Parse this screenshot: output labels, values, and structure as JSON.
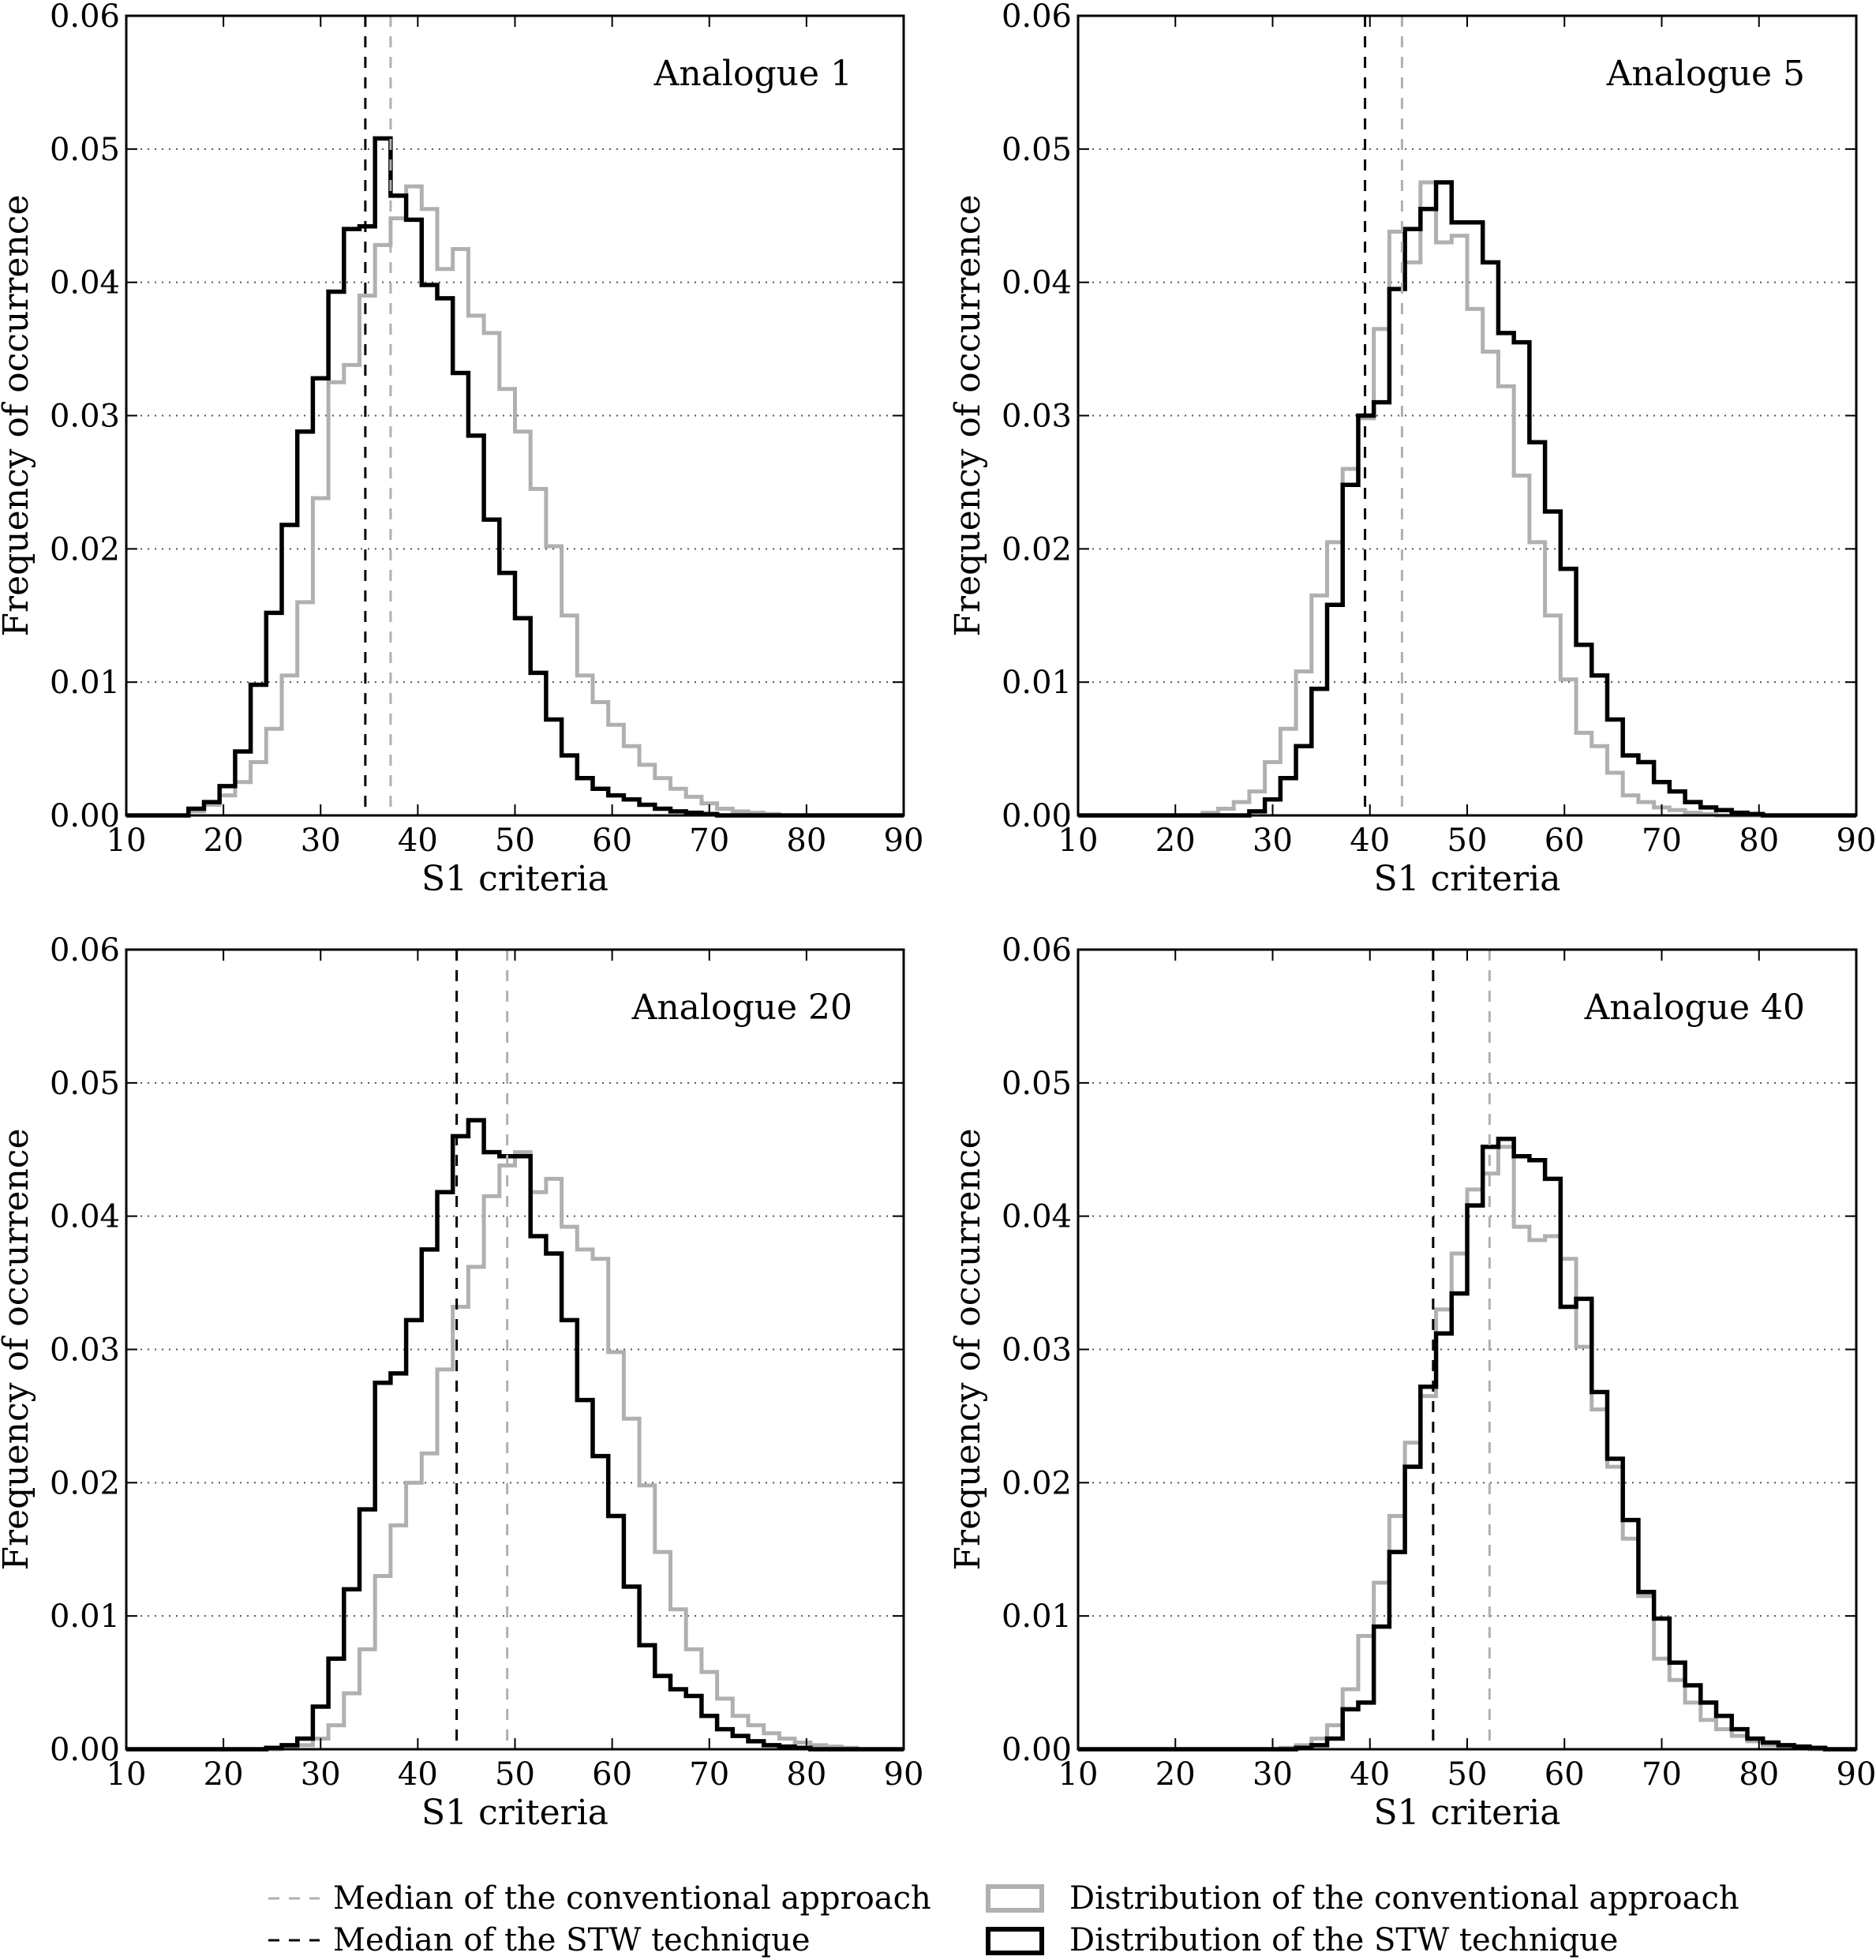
{
  "chart_data": [
    {
      "type": "histogram",
      "title": "Analogue 1",
      "xlabel": "S1 criteria",
      "ylabel": "Frequency of occurrence",
      "xlim": [
        10,
        90
      ],
      "ylim": [
        0,
        0.06
      ],
      "xticks": [
        "10",
        "20",
        "30",
        "40",
        "50",
        "60",
        "70",
        "80",
        "90"
      ],
      "yticks": [
        "0.00",
        "0.01",
        "0.02",
        "0.03",
        "0.04",
        "0.05",
        "0.06"
      ],
      "grid": "horizontal dotted",
      "bin_edges_start": 10,
      "bin_width": 1.6,
      "series": [
        {
          "name": "Distribution of the conventional approach",
          "color": "#b0b0b0",
          "values": [
            0,
            0,
            0,
            0,
            0.0003,
            0.0008,
            0.0015,
            0.0025,
            0.004,
            0.0065,
            0.0105,
            0.016,
            0.0238,
            0.0325,
            0.0338,
            0.039,
            0.0428,
            0.0448,
            0.0472,
            0.0455,
            0.041,
            0.0425,
            0.0375,
            0.0362,
            0.032,
            0.0288,
            0.0245,
            0.0202,
            0.015,
            0.0105,
            0.0085,
            0.0068,
            0.0052,
            0.0038,
            0.0028,
            0.002,
            0.0014,
            0.0009,
            0.0005,
            0.0003,
            0.0002,
            0.0001,
            0,
            0,
            0,
            0,
            0,
            0,
            0,
            0
          ]
        },
        {
          "name": "Distribution of the STW technique",
          "color": "#000000",
          "values": [
            0,
            0,
            0,
            0,
            0.0005,
            0.001,
            0.0022,
            0.0048,
            0.0098,
            0.0152,
            0.0218,
            0.0288,
            0.0328,
            0.0393,
            0.044,
            0.0442,
            0.0508,
            0.0465,
            0.0447,
            0.0398,
            0.0388,
            0.0332,
            0.0285,
            0.0222,
            0.0182,
            0.0148,
            0.0107,
            0.0072,
            0.0045,
            0.0028,
            0.002,
            0.0015,
            0.0012,
            0.0008,
            0.0005,
            0.0003,
            0.0002,
            0.0001,
            0,
            0,
            0,
            0,
            0,
            0,
            0,
            0,
            0,
            0,
            0,
            0
          ]
        }
      ],
      "medians": {
        "conventional": 37.2,
        "stw": 34.6
      }
    },
    {
      "type": "histogram",
      "title": "Analogue 5",
      "xlabel": "S1 criteria",
      "ylabel": "Frequency of occurrence",
      "xlim": [
        10,
        90
      ],
      "ylim": [
        0,
        0.06
      ],
      "xticks": [
        "10",
        "20",
        "30",
        "40",
        "50",
        "60",
        "70",
        "80",
        "90"
      ],
      "yticks": [
        "0.00",
        "0.01",
        "0.02",
        "0.03",
        "0.04",
        "0.05",
        "0.06"
      ],
      "grid": "horizontal dotted",
      "bin_edges_start": 10,
      "bin_width": 1.6,
      "series": [
        {
          "name": "Distribution of the conventional approach",
          "color": "#b0b0b0",
          "values": [
            0,
            0,
            0,
            0,
            0,
            0,
            0,
            0,
            0.0002,
            0.0005,
            0.001,
            0.0018,
            0.004,
            0.0065,
            0.0108,
            0.0165,
            0.0205,
            0.026,
            0.0298,
            0.0365,
            0.0438,
            0.0415,
            0.0475,
            0.043,
            0.0435,
            0.038,
            0.0348,
            0.0322,
            0.0255,
            0.0205,
            0.015,
            0.0102,
            0.0062,
            0.0052,
            0.0032,
            0.0015,
            0.001,
            0.0006,
            0.0004,
            0.0002,
            0.0001,
            0,
            0,
            0,
            0,
            0,
            0,
            0,
            0,
            0
          ]
        },
        {
          "name": "Distribution of the STW technique",
          "color": "#000000",
          "values": [
            0,
            0,
            0,
            0,
            0,
            0,
            0,
            0,
            0,
            0,
            0,
            0.0003,
            0.0012,
            0.0028,
            0.0052,
            0.0095,
            0.0158,
            0.0248,
            0.03,
            0.031,
            0.0395,
            0.044,
            0.0455,
            0.0475,
            0.0445,
            0.0445,
            0.0415,
            0.0362,
            0.0355,
            0.028,
            0.0228,
            0.0185,
            0.0128,
            0.0105,
            0.0072,
            0.0045,
            0.004,
            0.0025,
            0.0018,
            0.001,
            0.0006,
            0.0004,
            0.0002,
            0.0001,
            0,
            0,
            0,
            0,
            0,
            0
          ]
        }
      ],
      "medians": {
        "conventional": 43.3,
        "stw": 39.5
      }
    },
    {
      "type": "histogram",
      "title": "Analogue 20",
      "xlabel": "S1 criteria",
      "ylabel": "Frequency of occurrence",
      "xlim": [
        10,
        90
      ],
      "ylim": [
        0,
        0.06
      ],
      "xticks": [
        "10",
        "20",
        "30",
        "40",
        "50",
        "60",
        "70",
        "80",
        "90"
      ],
      "yticks": [
        "0.00",
        "0.01",
        "0.02",
        "0.03",
        "0.04",
        "0.05",
        "0.06"
      ],
      "grid": "horizontal dotted",
      "bin_edges_start": 10,
      "bin_width": 1.6,
      "series": [
        {
          "name": "Distribution of the conventional approach",
          "color": "#b0b0b0",
          "values": [
            0,
            0,
            0,
            0,
            0,
            0,
            0,
            0,
            0,
            0,
            0.0001,
            0.0003,
            0.0008,
            0.0018,
            0.0042,
            0.0075,
            0.013,
            0.0168,
            0.02,
            0.0222,
            0.0285,
            0.0332,
            0.0362,
            0.0415,
            0.0438,
            0.0448,
            0.0418,
            0.0428,
            0.0392,
            0.0375,
            0.0368,
            0.0298,
            0.0248,
            0.0198,
            0.0148,
            0.0105,
            0.0075,
            0.0058,
            0.0038,
            0.0025,
            0.0018,
            0.0012,
            0.0008,
            0.0005,
            0.0003,
            0.0002,
            0.0001,
            0,
            0,
            0
          ]
        },
        {
          "name": "Distribution of the STW technique",
          "color": "#000000",
          "values": [
            0,
            0,
            0,
            0,
            0,
            0,
            0,
            0,
            0,
            0.0001,
            0.0003,
            0.0008,
            0.0032,
            0.0068,
            0.012,
            0.018,
            0.0275,
            0.0282,
            0.0322,
            0.0375,
            0.0418,
            0.046,
            0.0472,
            0.0448,
            0.0445,
            0.0445,
            0.0385,
            0.0372,
            0.0322,
            0.0262,
            0.022,
            0.0175,
            0.0122,
            0.0078,
            0.0055,
            0.0045,
            0.004,
            0.0025,
            0.0015,
            0.001,
            0.0006,
            0.0003,
            0.0002,
            0.0001,
            0,
            0,
            0,
            0,
            0,
            0
          ]
        }
      ],
      "medians": {
        "conventional": 49.2,
        "stw": 44.0
      }
    },
    {
      "type": "histogram",
      "title": "Analogue 40",
      "xlabel": "S1 criteria",
      "ylabel": "Frequency of occurrence",
      "xlim": [
        10,
        90
      ],
      "ylim": [
        0,
        0.06
      ],
      "xticks": [
        "10",
        "20",
        "30",
        "40",
        "50",
        "60",
        "70",
        "80",
        "90"
      ],
      "yticks": [
        "0.00",
        "0.01",
        "0.02",
        "0.03",
        "0.04",
        "0.05",
        "0.06"
      ],
      "grid": "horizontal dotted",
      "bin_edges_start": 10,
      "bin_width": 1.6,
      "series": [
        {
          "name": "Distribution of the conventional approach",
          "color": "#b0b0b0",
          "values": [
            0,
            0,
            0,
            0,
            0,
            0,
            0,
            0,
            0,
            0,
            0,
            0,
            0,
            0.0001,
            0.0003,
            0.0008,
            0.0018,
            0.0045,
            0.0085,
            0.0125,
            0.0175,
            0.023,
            0.0265,
            0.033,
            0.0372,
            0.042,
            0.0432,
            0.0452,
            0.0392,
            0.0382,
            0.0385,
            0.0368,
            0.0302,
            0.0255,
            0.0212,
            0.0158,
            0.0115,
            0.0068,
            0.0052,
            0.0035,
            0.0022,
            0.0015,
            0.001,
            0.0006,
            0.0003,
            0.0002,
            0.0001,
            0,
            0,
            0
          ]
        },
        {
          "name": "Distribution of the STW technique",
          "color": "#000000",
          "values": [
            0,
            0,
            0,
            0,
            0,
            0,
            0,
            0,
            0,
            0,
            0,
            0,
            0,
            0,
            0.0001,
            0.0003,
            0.0008,
            0.003,
            0.0035,
            0.0092,
            0.0148,
            0.0212,
            0.0272,
            0.0312,
            0.0342,
            0.0408,
            0.0452,
            0.0458,
            0.0445,
            0.0442,
            0.0428,
            0.0332,
            0.0338,
            0.0268,
            0.0218,
            0.0172,
            0.0118,
            0.0098,
            0.0065,
            0.0048,
            0.0035,
            0.0025,
            0.0015,
            0.0008,
            0.0005,
            0.0003,
            0.0002,
            0.0001,
            0,
            0
          ]
        }
      ],
      "medians": {
        "conventional": 52.3,
        "stw": 46.5
      }
    }
  ],
  "legend": {
    "placement": "bottom",
    "items": [
      {
        "label": "Median of the conventional approach",
        "kind": "dashed-line",
        "color": "#b0b0b0"
      },
      {
        "label": "Median of the STW technique",
        "kind": "dashed-line",
        "color": "#000000"
      },
      {
        "label": "Distribution of the conventional approach",
        "kind": "box",
        "color": "#b0b0b0"
      },
      {
        "label": "Distribution of the STW technique",
        "kind": "box",
        "color": "#000000"
      }
    ]
  }
}
